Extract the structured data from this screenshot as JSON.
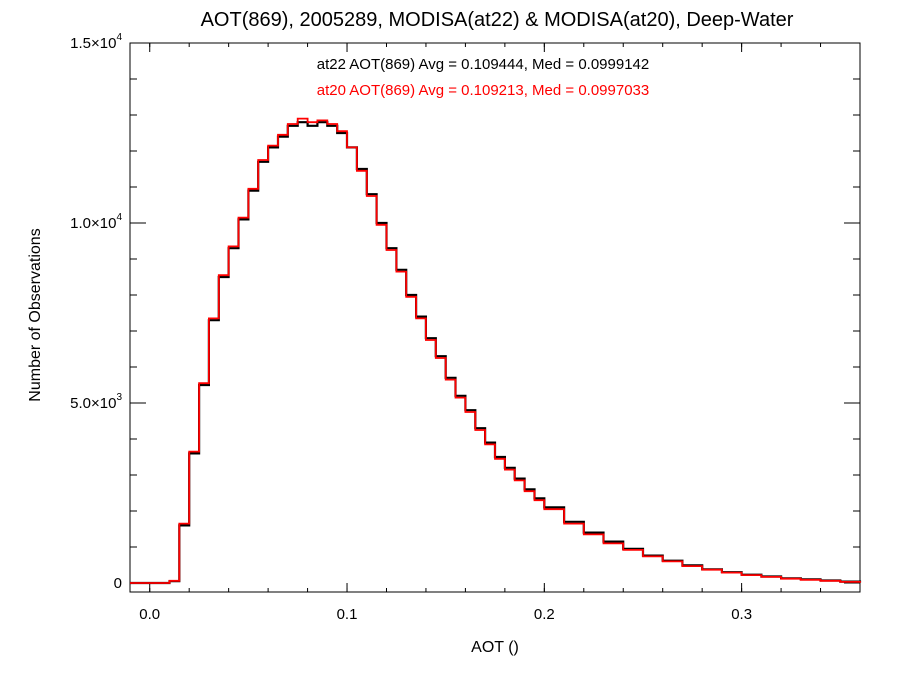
{
  "chart_data": {
    "type": "line",
    "step": true,
    "title": "AOT(869), 2005289, MODISA(at22) & MODISA(at20), Deep-Water",
    "xlabel": "AOT ()",
    "ylabel": "Number of Observations",
    "xlim": [
      -0.01,
      0.36
    ],
    "ylim": [
      -250,
      15000
    ],
    "x_ticks": [
      {
        "value": 0.0,
        "label": "0.0"
      },
      {
        "value": 0.1,
        "label": "0.1"
      },
      {
        "value": 0.2,
        "label": "0.2"
      },
      {
        "value": 0.3,
        "label": "0.3"
      }
    ],
    "y_ticks": [
      {
        "value": 0,
        "mant": "0",
        "exp": ""
      },
      {
        "value": 5000,
        "mant": "5.0×10",
        "exp": "3"
      },
      {
        "value": 10000,
        "mant": "1.0×10",
        "exp": "4"
      },
      {
        "value": 15000,
        "mant": "1.5×10",
        "exp": "4"
      }
    ],
    "grid": false,
    "annotations": [
      {
        "text": "at22 AOT(869) Avg = 0.109444, Med = 0.0999142",
        "color": "#000000"
      },
      {
        "text": "at20 AOT(869) Avg = 0.109213, Med = 0.0997033",
        "color": "#ff0000"
      }
    ],
    "series": [
      {
        "color": "#000000",
        "x": [
          -0.01,
          0.005,
          0.01,
          0.015,
          0.02,
          0.025,
          0.03,
          0.035,
          0.04,
          0.045,
          0.05,
          0.055,
          0.06,
          0.065,
          0.07,
          0.075,
          0.08,
          0.085,
          0.09,
          0.095,
          0.1,
          0.105,
          0.11,
          0.115,
          0.12,
          0.125,
          0.13,
          0.135,
          0.14,
          0.145,
          0.15,
          0.155,
          0.16,
          0.165,
          0.17,
          0.175,
          0.18,
          0.185,
          0.19,
          0.195,
          0.2,
          0.21,
          0.22,
          0.23,
          0.24,
          0.25,
          0.26,
          0.27,
          0.28,
          0.29,
          0.3,
          0.31,
          0.32,
          0.33,
          0.34,
          0.35,
          0.36
        ],
        "y": [
          0,
          0,
          50,
          1600,
          3600,
          5500,
          7300,
          8500,
          9300,
          10100,
          10900,
          11700,
          12100,
          12400,
          12700,
          12800,
          12700,
          12800,
          12700,
          12500,
          12100,
          11500,
          10800,
          10000,
          9300,
          8700,
          8000,
          7400,
          6800,
          6300,
          5700,
          5200,
          4800,
          4300,
          3900,
          3500,
          3200,
          2900,
          2600,
          2350,
          2100,
          1700,
          1400,
          1150,
          950,
          760,
          620,
          490,
          380,
          300,
          230,
          180,
          130,
          100,
          70,
          40,
          10
        ]
      },
      {
        "color": "#ff0000",
        "x": [
          -0.01,
          0.005,
          0.01,
          0.015,
          0.02,
          0.025,
          0.03,
          0.035,
          0.04,
          0.045,
          0.05,
          0.055,
          0.06,
          0.065,
          0.07,
          0.075,
          0.08,
          0.085,
          0.09,
          0.095,
          0.1,
          0.105,
          0.11,
          0.115,
          0.12,
          0.125,
          0.13,
          0.135,
          0.14,
          0.145,
          0.15,
          0.155,
          0.16,
          0.165,
          0.17,
          0.175,
          0.18,
          0.185,
          0.19,
          0.195,
          0.2,
          0.21,
          0.22,
          0.23,
          0.24,
          0.25,
          0.26,
          0.27,
          0.28,
          0.29,
          0.3,
          0.31,
          0.32,
          0.33,
          0.34,
          0.35,
          0.36
        ],
        "y": [
          0,
          0,
          60,
          1650,
          3650,
          5550,
          7350,
          8550,
          9350,
          10150,
          10950,
          11750,
          12150,
          12450,
          12750,
          12900,
          12800,
          12850,
          12750,
          12550,
          12100,
          11450,
          10750,
          9950,
          9250,
          8650,
          7950,
          7350,
          6750,
          6250,
          5650,
          5150,
          4750,
          4250,
          3850,
          3450,
          3150,
          2850,
          2550,
          2300,
          2050,
          1650,
          1350,
          1100,
          920,
          740,
          600,
          470,
          370,
          290,
          220,
          170,
          120,
          90,
          60,
          30,
          5
        ]
      }
    ]
  }
}
